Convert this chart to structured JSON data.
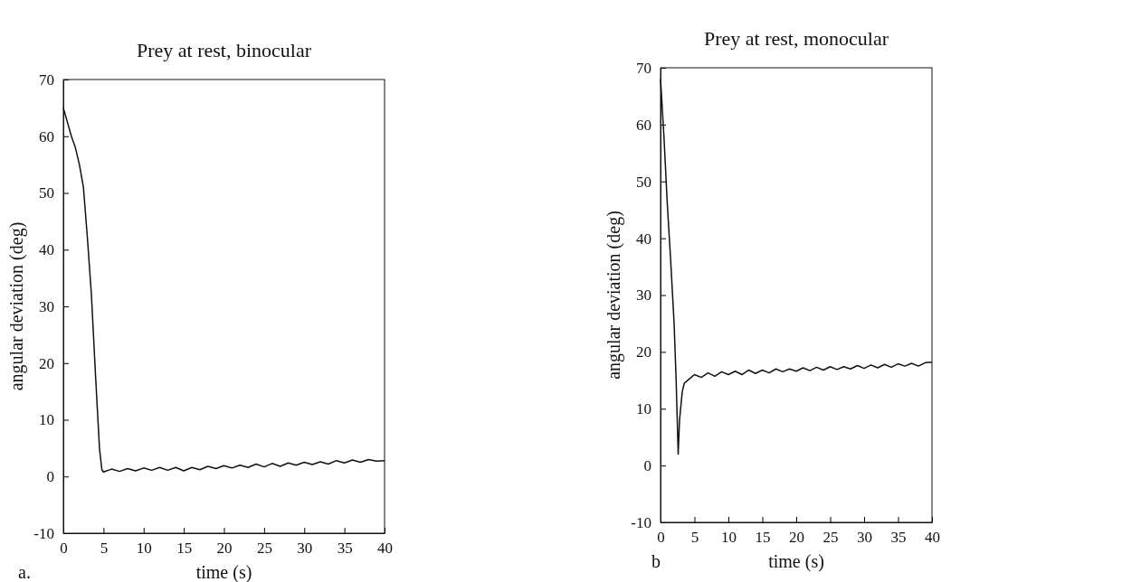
{
  "chart_data": [
    {
      "type": "line",
      "title": "Prey at rest, binocular",
      "xlabel": "time (s)",
      "ylabel": "angular deviation (deg)",
      "annotations": [
        "a."
      ],
      "xlim": [
        0,
        40
      ],
      "xticks": [
        0,
        5,
        10,
        15,
        20,
        25,
        30,
        35,
        40
      ],
      "ylim": [
        -10,
        70
      ],
      "yticks": [
        -10,
        0,
        10,
        20,
        30,
        40,
        50,
        60,
        70
      ],
      "grid": false,
      "series": [
        {
          "color": "#111111",
          "x": [
            0,
            1,
            1.5,
            2,
            2.5,
            3,
            3.5,
            4,
            4.5,
            4.8,
            5,
            6,
            7,
            8,
            9,
            10,
            11,
            12,
            13,
            14,
            15,
            16,
            17,
            18,
            19,
            20,
            21,
            22,
            23,
            24,
            25,
            26,
            27,
            28,
            29,
            30,
            31,
            32,
            33,
            34,
            35,
            36,
            37,
            38,
            39,
            40
          ],
          "values": [
            65,
            60,
            58,
            55,
            51,
            42,
            32,
            18,
            5,
            1.2,
            0.8,
            1.3,
            0.9,
            1.4,
            1.0,
            1.5,
            1.1,
            1.6,
            1.1,
            1.6,
            1.0,
            1.6,
            1.2,
            1.8,
            1.4,
            1.9,
            1.5,
            2.0,
            1.6,
            2.2,
            1.7,
            2.3,
            1.8,
            2.4,
            2.0,
            2.5,
            2.1,
            2.6,
            2.2,
            2.8,
            2.4,
            2.9,
            2.5,
            3.0,
            2.7,
            2.8
          ]
        }
      ]
    },
    {
      "type": "line",
      "title": "Prey at rest, monocular",
      "xlabel": "time (s)",
      "ylabel": "angular deviation (deg)",
      "annotations": [
        "b"
      ],
      "xlim": [
        0,
        40
      ],
      "xticks": [
        0,
        5,
        10,
        15,
        20,
        25,
        30,
        35,
        40
      ],
      "ylim": [
        -10,
        70
      ],
      "yticks": [
        -10,
        0,
        10,
        20,
        30,
        40,
        50,
        60,
        70
      ],
      "grid": false,
      "series": [
        {
          "color": "#111111",
          "x": [
            0,
            0.5,
            1,
            1.5,
            2,
            2.3,
            2.6,
            2.8,
            3.2,
            3.5,
            4,
            4.5,
            5,
            6,
            7,
            8,
            9,
            10,
            11,
            12,
            13,
            14,
            15,
            16,
            17,
            18,
            19,
            20,
            21,
            22,
            23,
            24,
            25,
            26,
            27,
            28,
            29,
            30,
            31,
            32,
            33,
            34,
            35,
            36,
            37,
            38,
            39,
            40
          ],
          "values": [
            68,
            58,
            46,
            36,
            25,
            15,
            2,
            8,
            13,
            14.5,
            15,
            15.5,
            16,
            15.5,
            16.3,
            15.7,
            16.5,
            16,
            16.6,
            16,
            16.8,
            16.2,
            16.8,
            16.3,
            17,
            16.5,
            17,
            16.6,
            17.2,
            16.7,
            17.3,
            16.8,
            17.4,
            16.9,
            17.4,
            17,
            17.6,
            17.1,
            17.7,
            17.2,
            17.8,
            17.3,
            17.9,
            17.5,
            18,
            17.5,
            18.1,
            18.2
          ]
        }
      ]
    }
  ]
}
